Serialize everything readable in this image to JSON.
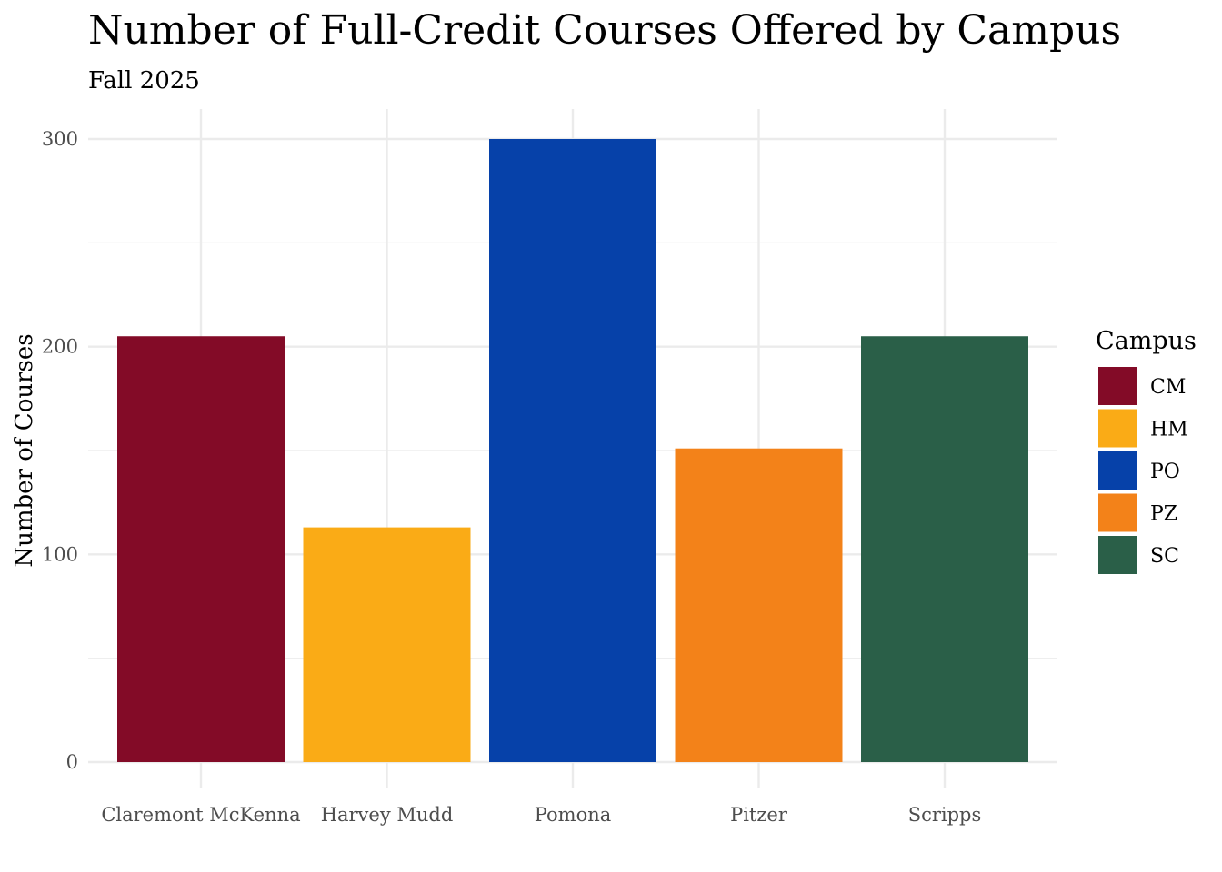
{
  "chart_data": {
    "type": "bar",
    "title": "Number of Full-Credit Courses Offered by Campus",
    "subtitle": "Fall 2025",
    "xlabel": "",
    "ylabel": "Number of Courses",
    "categories": [
      "Claremont McKenna",
      "Harvey Mudd",
      "Pomona",
      "Pitzer",
      "Scripps"
    ],
    "values": [
      205,
      113,
      300,
      151,
      205
    ],
    "codes": [
      "CM",
      "HM",
      "PO",
      "PZ",
      "SC"
    ],
    "colors": [
      "#830b27",
      "#faab16",
      "#0641a9",
      "#f38219",
      "#2a5f48"
    ],
    "yticks": [
      0,
      100,
      200,
      300
    ],
    "ylim": [
      0,
      315
    ],
    "grid": true,
    "legend": {
      "title": "Campus",
      "placement": "right",
      "entries": [
        "CM",
        "HM",
        "PO",
        "PZ",
        "SC"
      ]
    }
  }
}
